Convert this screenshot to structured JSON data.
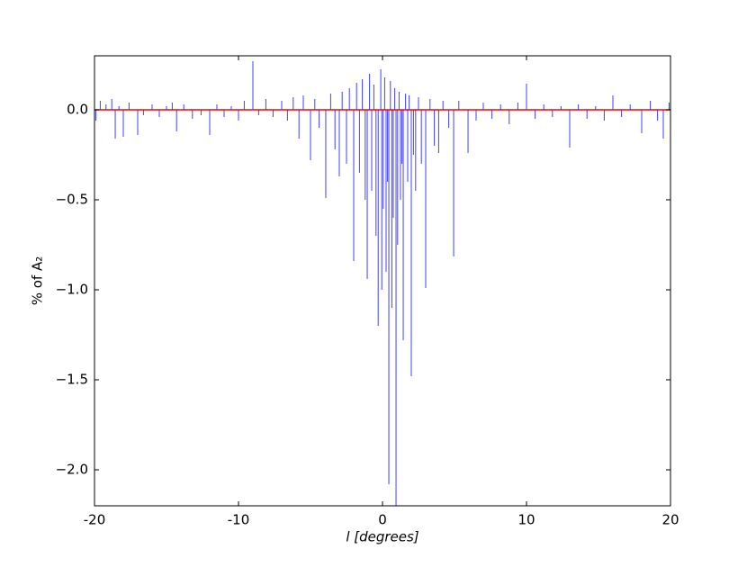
{
  "chart_data": {
    "type": "vlines",
    "xlabel": "l [degrees]",
    "ylabel": "% of A₂",
    "xlim": [
      -20,
      20
    ],
    "ylim": [
      -2.2,
      0.3
    ],
    "xticks": [
      -20,
      -10,
      0,
      10,
      20
    ],
    "yticks": [
      {
        "value": 0,
        "label": "0.0"
      },
      {
        "value": -0.5,
        "label": "−0.5"
      },
      {
        "value": -1,
        "label": "−1.0"
      },
      {
        "value": -1.5,
        "label": "−1.5"
      },
      {
        "value": -2,
        "label": "−2.0"
      }
    ],
    "color": "#0000ff",
    "reference_line": {
      "value": 0,
      "color": "#ff0000"
    },
    "x": [
      -19.9,
      -19.6,
      -19.2,
      -18.8,
      -18.56,
      -18.3,
      -18.0,
      -17.6,
      -17.0,
      -16.6,
      -16.0,
      -15.5,
      -15.0,
      -14.6,
      -14.3,
      -13.8,
      -13.2,
      -12.6,
      -12.0,
      -11.5,
      -11.0,
      -10.5,
      -10.0,
      -9.6,
      -9.0,
      -8.6,
      -8.1,
      -7.6,
      -7.0,
      -6.6,
      -6.2,
      -5.8,
      -5.5,
      -5.0,
      -4.7,
      -4.4,
      -3.94,
      -3.6,
      -3.3,
      -3.0,
      -2.8,
      -2.5,
      -2.3,
      -2.0,
      -1.8,
      -1.6,
      -1.4,
      -1.2,
      -1.06,
      -0.9,
      -0.75,
      -0.6,
      -0.45,
      -0.3,
      -0.12,
      -0.05,
      0.05,
      0.15,
      0.25,
      0.35,
      0.44,
      0.55,
      0.65,
      0.75,
      0.85,
      0.94,
      1.05,
      1.15,
      1.25,
      1.35,
      1.44,
      1.6,
      1.75,
      1.85,
      2.0,
      2.15,
      2.3,
      2.5,
      2.7,
      3.0,
      3.3,
      3.6,
      3.9,
      4.2,
      4.6,
      4.94,
      5.3,
      5.94,
      6.5,
      7.0,
      7.6,
      8.2,
      8.8,
      9.4,
      10.0,
      10.6,
      11.2,
      11.8,
      12.4,
      13.0,
      13.6,
      14.2,
      14.8,
      15.4,
      16.0,
      16.6,
      17.2,
      18.0,
      18.6,
      19.1,
      19.5,
      19.9
    ],
    "values": [
      -0.06,
      0.05,
      0.03,
      0.06,
      -0.16,
      0.02,
      -0.15,
      0.04,
      -0.14,
      -0.03,
      0.03,
      -0.04,
      0.02,
      0.04,
      -0.12,
      0.03,
      -0.05,
      -0.03,
      -0.14,
      0.03,
      -0.04,
      0.02,
      -0.06,
      0.05,
      0.27,
      -0.03,
      0.06,
      -0.04,
      0.05,
      -0.06,
      0.07,
      -0.16,
      0.08,
      -0.28,
      0.06,
      -0.1,
      -0.49,
      0.09,
      -0.22,
      -0.37,
      0.1,
      -0.3,
      0.12,
      -0.84,
      0.15,
      -0.35,
      0.17,
      -0.5,
      -0.94,
      0.2,
      -0.45,
      0.14,
      -0.7,
      -1.2,
      0.225,
      -1.0,
      -0.55,
      0.18,
      -0.9,
      -0.4,
      -2.08,
      0.16,
      -1.1,
      -0.6,
      0.12,
      -2.2,
      -0.75,
      0.1,
      -0.5,
      -0.3,
      -1.28,
      0.09,
      -0.4,
      0.08,
      -1.48,
      -0.25,
      -0.45,
      0.07,
      -0.3,
      -0.99,
      0.06,
      -0.2,
      -0.24,
      0.05,
      -0.1,
      -0.815,
      0.05,
      -0.24,
      -0.06,
      0.04,
      -0.05,
      0.03,
      -0.08,
      0.04,
      0.145,
      -0.05,
      0.03,
      -0.04,
      0.02,
      -0.21,
      0.03,
      -0.05,
      0.02,
      -0.06,
      0.08,
      -0.04,
      0.03,
      -0.13,
      0.05,
      -0.06,
      -0.16,
      0.04
    ]
  }
}
